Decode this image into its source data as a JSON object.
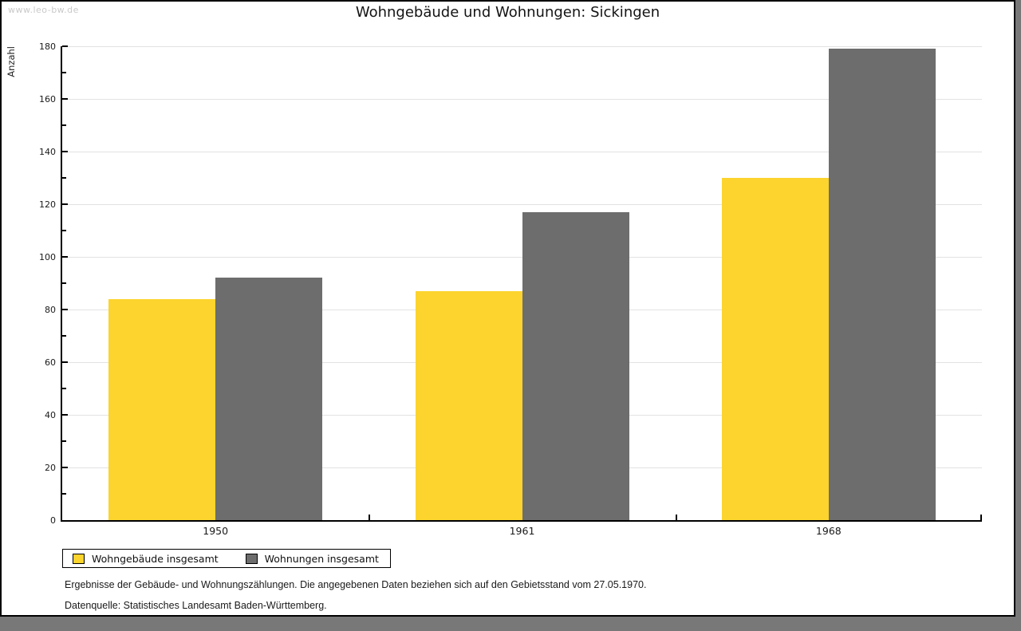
{
  "watermark": "www.leo-bw.de",
  "chart_data": {
    "type": "bar",
    "title": "Wohngebäude und Wohnungen: Sickingen",
    "ylabel": "Anzahl",
    "xlabel": "",
    "categories": [
      "1950",
      "1961",
      "1968"
    ],
    "series": [
      {
        "name": "Wohngebäude insgesamt",
        "color": "#fcd42d",
        "values": [
          84,
          87,
          130
        ]
      },
      {
        "name": "Wohnungen insgesamt",
        "color": "#6d6d6d",
        "values": [
          92,
          117,
          179
        ]
      }
    ],
    "ylim": [
      0,
      180
    ],
    "ytick_step": 20,
    "minor_tick_step": 10,
    "grid": true,
    "grid_color": "#e2e2e2",
    "legend_position": "bottom-left"
  },
  "footnotes": [
    "Ergebnisse der Gebäude- und Wohnungszählungen. Die angegebenen Daten beziehen sich auf den Gebietsstand vom 27.05.1970.",
    "Datenquelle: Statistisches Landesamt Baden-Württemberg."
  ]
}
